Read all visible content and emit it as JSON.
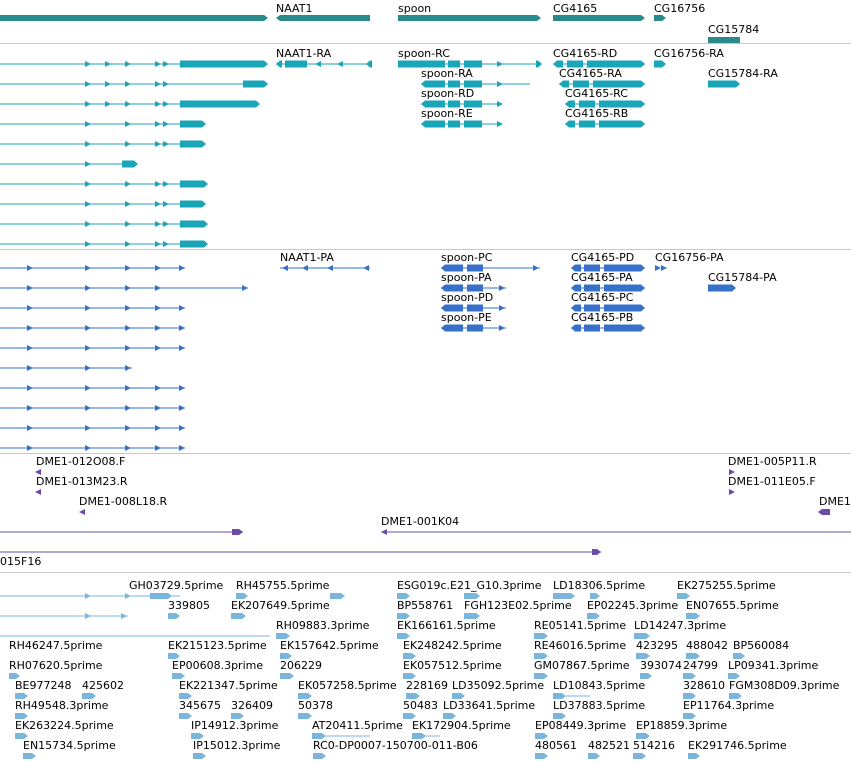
{
  "colors": {
    "gene": "#2a8a8a",
    "transcript": "#1aa5b8",
    "protein": "#3670c8",
    "clone": "#6a4ca8",
    "est": "#7ab6dc",
    "separator": "#c8c8c8"
  },
  "tracks": {
    "genes": {
      "labels": [
        "NAAT1",
        "spoon",
        "CG4165",
        "CG16756",
        "CG15784"
      ]
    },
    "transcripts": {
      "labels": [
        "NAAT1-RA",
        "spoon-RC",
        "CG4165-RD",
        "CG16756-RA",
        "spoon-RA",
        "CG4165-RA",
        "CG15784-RA",
        "spoon-RD",
        "CG4165-RC",
        "spoon-RE",
        "CG4165-RB"
      ]
    },
    "proteins": {
      "labels": [
        "NAAT1-PA",
        "spoon-PC",
        "CG4165-PD",
        "CG16756-PA",
        "spoon-PA",
        "CG4165-PA",
        "CG15784-PA",
        "spoon-PD",
        "CG4165-PC",
        "spoon-PE",
        "CG4165-PB"
      ]
    },
    "clones": {
      "labels": [
        "DME1-012O08.F",
        "DME1-005P11.R",
        "DME1-013M23.R",
        "DME1-011E05.F",
        "DME1-008L18.R",
        "DME1",
        "DME1-001K04",
        "015F16"
      ]
    },
    "ests": {
      "labels": [
        "GH03729.5prime",
        "RH45755.5prime",
        "ESG019c.E21_G10.3prime",
        "LD18306.5prime",
        "EK275255.5prime",
        "339805",
        "EK207649.5prime",
        "BP558761",
        "FGH123E02.5prime",
        "EP02245.3prime",
        "EN07655.5prime",
        "RH09883.3prime",
        "EK215123.5prime",
        "EK166161.5prime",
        "RE05141.5prime",
        "LD14247.3prime",
        "RH46247.5prime",
        "EK157642.5prime",
        "EK248242.5prime",
        "RE46016.5prime",
        "423295",
        "488042",
        "BP560084",
        "RH07620.5prime",
        "EP00608.3prime",
        "206229",
        "EK057512.5prime",
        "GM07867.5prime",
        "393074",
        "24799",
        "LP09341.3prime",
        "BE977248",
        "425602",
        "EK221347.5prime",
        "EK057258.5prime",
        "228169",
        "LD35092.5prime",
        "LD10843.5prime",
        "328610",
        "FGM308D09.3prime",
        "RH49548.3prime",
        "345675",
        "326409",
        "50378",
        "50483",
        "LD33641.5prime",
        "LD37883.5prime",
        "EP11764.3prime",
        "EK263224.5prime",
        "IP14912.3prime",
        "AT20411.5prime",
        "EK172904.5prime",
        "EP08449.3prime",
        "EP18859.3prime",
        "EN15734.5prime",
        "IP15012.3prime",
        "RC0-DP0007-150700-011-B06",
        "480561",
        "482521",
        "514216",
        "EK291746.5prime"
      ]
    }
  }
}
